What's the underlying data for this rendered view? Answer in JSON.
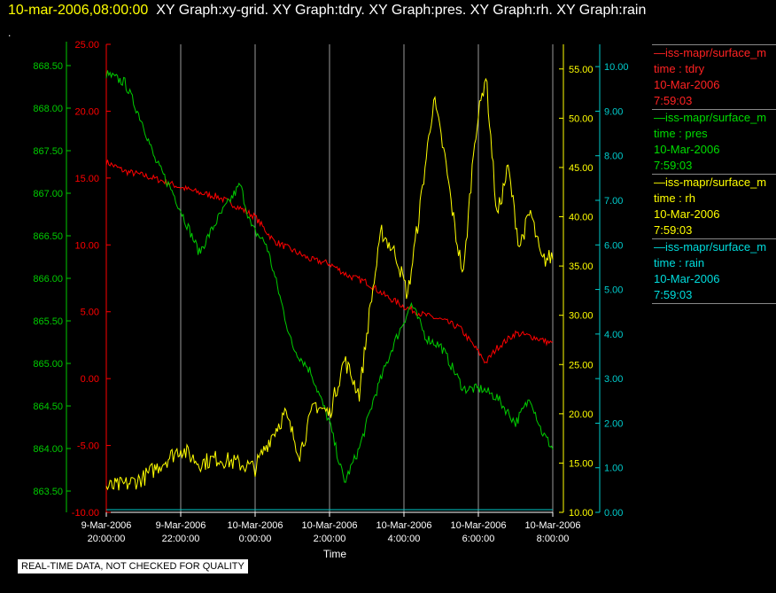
{
  "header": {
    "timestamp": "10-mar-2006,08:00:00",
    "graphs": "XY Graph:xy-grid.  XY Graph:tdry.  XY Graph:pres.  XY Graph:rh.  XY Graph:rain",
    "dot": "."
  },
  "note": "REAL-TIME DATA, NOT CHECKED FOR QUALITY",
  "colors": {
    "tdry": "#ff0000",
    "pres": "#00cc00",
    "rh": "#ffff00",
    "rain": "#00cccc",
    "grid": "#ffffff"
  },
  "legend": [
    {
      "series": "—iss-mapr/surface_m",
      "var": "time : tdry",
      "date": "10-Mar-2006",
      "time": "7:59:03",
      "color": "#ff2222"
    },
    {
      "series": "—iss-mapr/surface_m",
      "var": "time : pres",
      "date": "10-Mar-2006",
      "time": "7:59:03",
      "color": "#00dd00"
    },
    {
      "series": "—iss-mapr/surface_m",
      "var": "time : rh",
      "date": "10-Mar-2006",
      "time": "7:59:03",
      "color": "#ffff00"
    },
    {
      "series": "—iss-mapr/surface_m",
      "var": "time : rain",
      "date": "10-Mar-2006",
      "time": "7:59:03",
      "color": "#00dddd"
    }
  ],
  "chart_data": {
    "type": "line",
    "xlabel": "Time",
    "x_ticks": [
      {
        "date": "9-Mar-2006",
        "time": "20:00:00"
      },
      {
        "date": "9-Mar-2006",
        "time": "22:00:00"
      },
      {
        "date": "10-Mar-2006",
        "time": "0:00:00"
      },
      {
        "date": "10-Mar-2006",
        "time": "2:00:00"
      },
      {
        "date": "10-Mar-2006",
        "time": "4:00:00"
      },
      {
        "date": "10-Mar-2006",
        "time": "6:00:00"
      },
      {
        "date": "10-Mar-2006",
        "time": "8:00:00"
      }
    ],
    "x_hours_from_start": [
      0,
      2,
      4,
      6,
      8,
      10,
      12
    ],
    "grid": true,
    "axes": {
      "tdry": {
        "range": [
          -10,
          25
        ],
        "ticks": [
          "-10.00",
          "-5.00",
          "0.00",
          "5.00",
          "10.00",
          "15.00",
          "20.00",
          "25.00"
        ]
      },
      "pres": {
        "range": [
          863.25,
          868.75
        ],
        "ticks": [
          "863.50",
          "864.00",
          "864.50",
          "865.00",
          "865.50",
          "866.00",
          "866.50",
          "867.00",
          "867.50",
          "868.00",
          "868.50"
        ]
      },
      "rh": {
        "range": [
          10,
          57.5
        ],
        "ticks": [
          "10.00",
          "15.00",
          "20.00",
          "25.00",
          "30.00",
          "35.00",
          "40.00",
          "45.00",
          "50.00",
          "55.00"
        ]
      },
      "rain": {
        "range": [
          0,
          10.5
        ],
        "ticks": [
          "0.00",
          "1.00",
          "2.00",
          "3.00",
          "4.00",
          "5.00",
          "6.00",
          "7.00",
          "8.00",
          "9.00",
          "10.00"
        ]
      }
    },
    "series": [
      {
        "key": "tdry",
        "x": [
          0,
          0.5,
          1,
          1.5,
          2,
          2.5,
          3,
          3.5,
          4,
          4.5,
          5,
          5.5,
          6,
          6.5,
          7,
          7.5,
          8,
          8.5,
          9,
          9.5,
          10,
          10.2,
          10.5,
          11,
          11.5,
          12
        ],
        "values": [
          16.2,
          15.5,
          15.2,
          14.8,
          14.3,
          13.9,
          13.6,
          12.9,
          12.1,
          10.3,
          9.6,
          8.9,
          8.6,
          7.7,
          7.2,
          6.2,
          5.4,
          4.8,
          4.4,
          3.8,
          2.0,
          1.2,
          2.3,
          3.4,
          3.1,
          2.6
        ]
      },
      {
        "key": "pres",
        "x": [
          0,
          0.5,
          1,
          1.3,
          1.8,
          2.2,
          2.5,
          3.0,
          3.6,
          3.9,
          4.3,
          4.6,
          5.0,
          5.5,
          6.0,
          6.4,
          6.8,
          7.2,
          7.7,
          8.2,
          8.6,
          9.0,
          9.6,
          10.1,
          10.5,
          11.0,
          11.4,
          11.7,
          12
        ],
        "values": [
          868.4,
          868.3,
          867.8,
          867.4,
          867.0,
          866.6,
          866.3,
          866.7,
          867.1,
          866.6,
          866.4,
          865.9,
          865.2,
          864.9,
          864.3,
          863.6,
          864.0,
          864.6,
          865.2,
          865.7,
          865.3,
          865.2,
          864.7,
          864.7,
          864.6,
          864.3,
          864.6,
          864.2,
          864.0
        ]
      },
      {
        "key": "rh",
        "x": [
          0,
          0.5,
          1,
          1.5,
          2,
          2.5,
          3,
          3.5,
          4,
          4.4,
          4.8,
          5.2,
          5.6,
          6.0,
          6.4,
          6.8,
          7.1,
          7.4,
          7.8,
          8.1,
          8.4,
          8.8,
          9.1,
          9.4,
          9.6,
          9.9,
          10.2,
          10.5,
          10.8,
          11.1,
          11.4,
          11.7,
          12
        ],
        "values": [
          12.5,
          12.8,
          13.5,
          15.0,
          16.5,
          15.0,
          15.5,
          15.0,
          14.5,
          17.5,
          20.0,
          16.0,
          21.0,
          20.0,
          25.5,
          22.0,
          31.0,
          38.5,
          36.0,
          32.0,
          40.0,
          52.0,
          46.0,
          38.0,
          34.0,
          48.0,
          54.5,
          40.0,
          45.0,
          37.0,
          40.5,
          35.5,
          36.0
        ]
      },
      {
        "key": "rain",
        "x": [
          0,
          12
        ],
        "values": [
          0,
          0
        ]
      }
    ]
  }
}
